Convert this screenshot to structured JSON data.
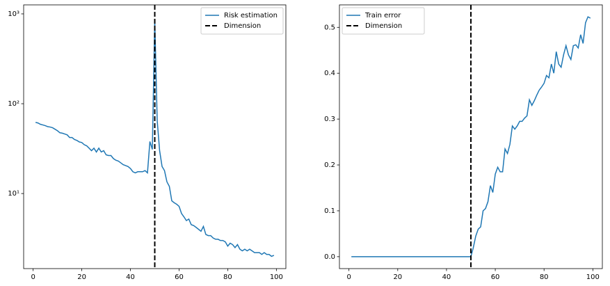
{
  "chart_data": [
    {
      "type": "line",
      "log_y": true,
      "legend": "upper right",
      "xlim": [
        -3.9,
        103.9
      ],
      "ylim": [
        1.46,
        1260
      ],
      "xticks": [
        0,
        20,
        40,
        60,
        80,
        100
      ],
      "yticks": [
        {
          "value": 10,
          "label": "10¹"
        },
        {
          "value": 100,
          "label": "10²"
        },
        {
          "value": 1000,
          "label": "10³"
        }
      ],
      "x": [
        1,
        2,
        3,
        4,
        5,
        6,
        7,
        8,
        9,
        10,
        11,
        12,
        13,
        14,
        15,
        16,
        17,
        18,
        19,
        20,
        21,
        22,
        23,
        24,
        25,
        26,
        27,
        28,
        29,
        30,
        31,
        32,
        33,
        34,
        35,
        36,
        37,
        38,
        39,
        40,
        41,
        42,
        43,
        44,
        45,
        46,
        47,
        48,
        49,
        50,
        51,
        52,
        53,
        54,
        55,
        56,
        57,
        58,
        59,
        60,
        61,
        62,
        63,
        64,
        65,
        66,
        67,
        68,
        69,
        70,
        71,
        72,
        73,
        74,
        75,
        76,
        77,
        78,
        79,
        80,
        81,
        82,
        83,
        84,
        85,
        86,
        87,
        88,
        89,
        90,
        91,
        92,
        93,
        94,
        95,
        96,
        97,
        98,
        99
      ],
      "series": [
        {
          "name": "Risk estimation",
          "color": "#1f77b4",
          "values": [
            62,
            61,
            59,
            58,
            57,
            55.5,
            55,
            54,
            52,
            50,
            47.5,
            47,
            46,
            45,
            42,
            42,
            40,
            39,
            37.5,
            37,
            35,
            34,
            32,
            30,
            32,
            29,
            32,
            29,
            30,
            27,
            26.5,
            26.5,
            24.5,
            23.5,
            23,
            22,
            21,
            20.5,
            20,
            19,
            17.5,
            17,
            17.5,
            17.5,
            17.5,
            18,
            17,
            38,
            31,
            850,
            65,
            30,
            20,
            18,
            13.5,
            12,
            8.3,
            7.9,
            7.6,
            7.2,
            6,
            5.5,
            5,
            5.2,
            4.5,
            4.4,
            4.2,
            4,
            3.8,
            4.3,
            3.5,
            3.4,
            3.4,
            3.2,
            3.1,
            3.1,
            3,
            3,
            2.9,
            2.6,
            2.8,
            2.7,
            2.5,
            2.7,
            2.4,
            2.3,
            2.4,
            2.3,
            2.4,
            2.3,
            2.2,
            2.2,
            2.2,
            2.1,
            2.2,
            2.1,
            2.1,
            2.0,
            2.05
          ]
        }
      ],
      "vlines": [
        {
          "name": "Dimension",
          "x": 50,
          "color": "#000000"
        }
      ]
    },
    {
      "type": "line",
      "log_y": false,
      "legend": "upper left",
      "xlim": [
        -3.9,
        103.9
      ],
      "ylim": [
        -0.026,
        0.549
      ],
      "xticks": [
        0,
        20,
        40,
        60,
        80,
        100
      ],
      "yticks": [
        {
          "value": 0,
          "label": "0.0"
        },
        {
          "value": 0.1,
          "label": "0.1"
        },
        {
          "value": 0.2,
          "label": "0.2"
        },
        {
          "value": 0.3,
          "label": "0.3"
        },
        {
          "value": 0.4,
          "label": "0.4"
        },
        {
          "value": 0.5,
          "label": "0.5"
        }
      ],
      "x": [
        1,
        2,
        3,
        4,
        5,
        6,
        7,
        8,
        9,
        10,
        11,
        12,
        13,
        14,
        15,
        16,
        17,
        18,
        19,
        20,
        21,
        22,
        23,
        24,
        25,
        26,
        27,
        28,
        29,
        30,
        31,
        32,
        33,
        34,
        35,
        36,
        37,
        38,
        39,
        40,
        41,
        42,
        43,
        44,
        45,
        46,
        47,
        48,
        49,
        50,
        51,
        52,
        53,
        54,
        55,
        56,
        57,
        58,
        59,
        60,
        61,
        62,
        63,
        64,
        65,
        66,
        67,
        68,
        69,
        70,
        71,
        72,
        73,
        74,
        75,
        76,
        77,
        78,
        79,
        80,
        81,
        82,
        83,
        84,
        85,
        86,
        87,
        88,
        89,
        90,
        91,
        92,
        93,
        94,
        95,
        96,
        97,
        98,
        99
      ],
      "series": [
        {
          "name": "Train error",
          "color": "#1f77b4",
          "values": [
            0,
            0,
            0,
            0,
            0,
            0,
            0,
            0,
            0,
            0,
            0,
            0,
            0,
            0,
            0,
            0,
            0,
            0,
            0,
            0,
            0,
            0,
            0,
            0,
            0,
            0,
            0,
            0,
            0,
            0,
            0,
            0,
            0,
            0,
            0,
            0,
            0,
            0,
            0,
            0,
            0,
            0,
            0,
            0,
            0,
            0,
            0,
            0,
            0,
            0,
            0.02,
            0.045,
            0.06,
            0.065,
            0.1,
            0.105,
            0.12,
            0.155,
            0.14,
            0.18,
            0.195,
            0.185,
            0.185,
            0.235,
            0.225,
            0.245,
            0.285,
            0.278,
            0.285,
            0.295,
            0.295,
            0.302,
            0.307,
            0.342,
            0.33,
            0.34,
            0.352,
            0.363,
            0.37,
            0.378,
            0.395,
            0.39,
            0.42,
            0.4,
            0.447,
            0.42,
            0.413,
            0.44,
            0.46,
            0.44,
            0.43,
            0.46,
            0.462,
            0.455,
            0.484,
            0.465,
            0.51,
            0.523,
            0.52
          ]
        }
      ],
      "vlines": [
        {
          "name": "Dimension",
          "x": 50,
          "color": "#000000"
        }
      ]
    }
  ]
}
